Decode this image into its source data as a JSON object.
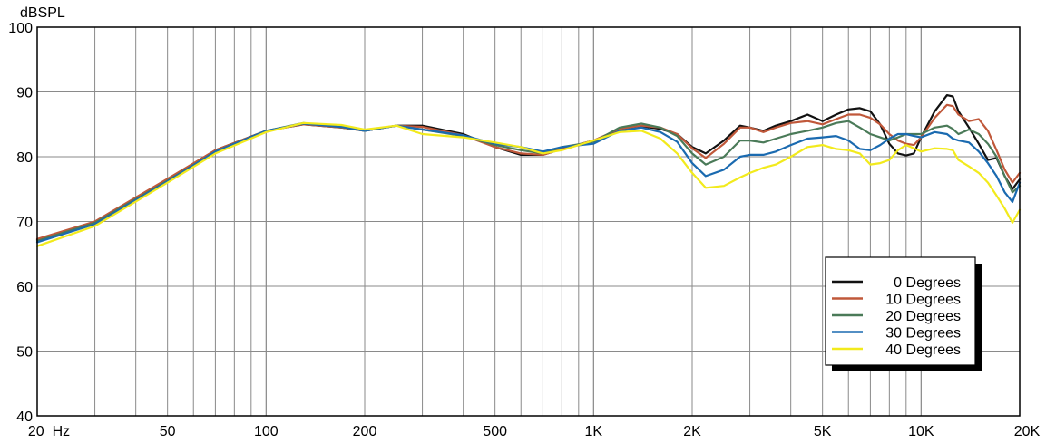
{
  "chart_data": {
    "type": "line",
    "ylabel": "dBSPL",
    "x_scale": "log",
    "xlim": [
      20,
      20000
    ],
    "ylim": [
      40,
      100
    ],
    "grid": true,
    "legend_position": "bottom-right",
    "yticks": [
      {
        "value": 40,
        "label": "40"
      },
      {
        "value": 50,
        "label": "50"
      },
      {
        "value": 60,
        "label": "60"
      },
      {
        "value": 70,
        "label": "70"
      },
      {
        "value": 80,
        "label": "80"
      },
      {
        "value": 90,
        "label": "90"
      },
      {
        "value": 100,
        "label": "100"
      }
    ],
    "xticks": [
      {
        "value": 20,
        "label": "20  Hz"
      },
      {
        "value": 50,
        "label": "50"
      },
      {
        "value": 100,
        "label": "100"
      },
      {
        "value": 200,
        "label": "200"
      },
      {
        "value": 500,
        "label": "500"
      },
      {
        "value": 1000,
        "label": "1K"
      },
      {
        "value": 2000,
        "label": "2K"
      },
      {
        "value": 5000,
        "label": "5K"
      },
      {
        "value": 10000,
        "label": "10K"
      },
      {
        "value": 20000,
        "label": "20K"
      }
    ],
    "series": [
      {
        "name": "0 Degrees",
        "color": "#111111",
        "points": [
          [
            20,
            67.2
          ],
          [
            30,
            69.8
          ],
          [
            50,
            76.5
          ],
          [
            70,
            81
          ],
          [
            100,
            84
          ],
          [
            130,
            85
          ],
          [
            170,
            84.5
          ],
          [
            200,
            84
          ],
          [
            250,
            84.8
          ],
          [
            300,
            84.8
          ],
          [
            400,
            83.5
          ],
          [
            500,
            81.5
          ],
          [
            600,
            80.3
          ],
          [
            700,
            80.3
          ],
          [
            800,
            81.2
          ],
          [
            1000,
            82.5
          ],
          [
            1200,
            84.2
          ],
          [
            1400,
            84.7
          ],
          [
            1600,
            84.3
          ],
          [
            1800,
            83.5
          ],
          [
            2000,
            81.5
          ],
          [
            2200,
            80.5
          ],
          [
            2500,
            82.5
          ],
          [
            2800,
            84.8
          ],
          [
            3000,
            84.5
          ],
          [
            3300,
            84
          ],
          [
            3600,
            84.8
          ],
          [
            4000,
            85.5
          ],
          [
            4500,
            86.5
          ],
          [
            5000,
            85.5
          ],
          [
            5500,
            86.5
          ],
          [
            6000,
            87.3
          ],
          [
            6500,
            87.5
          ],
          [
            7000,
            87
          ],
          [
            7500,
            85
          ],
          [
            8000,
            82
          ],
          [
            8500,
            80.5
          ],
          [
            9000,
            80.2
          ],
          [
            9500,
            80.5
          ],
          [
            10000,
            83
          ],
          [
            11000,
            87
          ],
          [
            12000,
            89.5
          ],
          [
            12500,
            89.3
          ],
          [
            13000,
            87
          ],
          [
            14000,
            84.5
          ],
          [
            15000,
            82
          ],
          [
            16000,
            79.5
          ],
          [
            17000,
            79.8
          ],
          [
            18000,
            77
          ],
          [
            19000,
            75
          ],
          [
            20000,
            76.5
          ]
        ]
      },
      {
        "name": "10 Degrees",
        "color": "#c0583a",
        "points": [
          [
            20,
            67.3
          ],
          [
            30,
            70
          ],
          [
            50,
            76.6
          ],
          [
            70,
            81
          ],
          [
            100,
            84
          ],
          [
            130,
            85
          ],
          [
            170,
            84.5
          ],
          [
            200,
            84
          ],
          [
            250,
            84.8
          ],
          [
            300,
            84.6
          ],
          [
            400,
            83.3
          ],
          [
            500,
            81.5
          ],
          [
            600,
            80.5
          ],
          [
            700,
            80.3
          ],
          [
            800,
            81.2
          ],
          [
            1000,
            82.5
          ],
          [
            1200,
            84.3
          ],
          [
            1400,
            84.8
          ],
          [
            1600,
            84.5
          ],
          [
            1800,
            83.5
          ],
          [
            2000,
            81.3
          ],
          [
            2200,
            79.8
          ],
          [
            2500,
            82
          ],
          [
            2800,
            84.5
          ],
          [
            3000,
            84.5
          ],
          [
            3300,
            83.8
          ],
          [
            3600,
            84.5
          ],
          [
            4000,
            85.2
          ],
          [
            4500,
            85.5
          ],
          [
            5000,
            85
          ],
          [
            5500,
            85.8
          ],
          [
            6000,
            86.5
          ],
          [
            6500,
            86.5
          ],
          [
            7000,
            86
          ],
          [
            7500,
            85
          ],
          [
            8000,
            83.5
          ],
          [
            8500,
            82.5
          ],
          [
            9000,
            82
          ],
          [
            9500,
            81.8
          ],
          [
            10000,
            83
          ],
          [
            11000,
            86
          ],
          [
            12000,
            88
          ],
          [
            12500,
            87.8
          ],
          [
            13000,
            86.5
          ],
          [
            14000,
            85.5
          ],
          [
            15000,
            85.8
          ],
          [
            16000,
            84
          ],
          [
            17000,
            81
          ],
          [
            18000,
            78
          ],
          [
            19000,
            76
          ],
          [
            20000,
            77.5
          ]
        ]
      },
      {
        "name": "20 Degrees",
        "color": "#4a7a58",
        "points": [
          [
            20,
            67
          ],
          [
            30,
            69.8
          ],
          [
            50,
            76.3
          ],
          [
            70,
            80.8
          ],
          [
            100,
            84
          ],
          [
            130,
            85.2
          ],
          [
            170,
            84.6
          ],
          [
            200,
            84
          ],
          [
            250,
            84.8
          ],
          [
            300,
            84.2
          ],
          [
            400,
            83.2
          ],
          [
            500,
            81.8
          ],
          [
            600,
            81
          ],
          [
            700,
            80.5
          ],
          [
            800,
            81.5
          ],
          [
            1000,
            82.3
          ],
          [
            1200,
            84.5
          ],
          [
            1400,
            85.1
          ],
          [
            1600,
            84.5
          ],
          [
            1800,
            83.2
          ],
          [
            2000,
            80.5
          ],
          [
            2200,
            78.8
          ],
          [
            2500,
            80
          ],
          [
            2800,
            82.5
          ],
          [
            3000,
            82.5
          ],
          [
            3300,
            82.2
          ],
          [
            3600,
            82.8
          ],
          [
            4000,
            83.5
          ],
          [
            4500,
            84
          ],
          [
            5000,
            84.5
          ],
          [
            5500,
            85.2
          ],
          [
            6000,
            85.5
          ],
          [
            6500,
            84.5
          ],
          [
            7000,
            83.5
          ],
          [
            7500,
            83
          ],
          [
            8000,
            82.5
          ],
          [
            8500,
            83
          ],
          [
            9000,
            83.5
          ],
          [
            9500,
            83.5
          ],
          [
            10000,
            83.5
          ],
          [
            11000,
            84.5
          ],
          [
            12000,
            84.8
          ],
          [
            12500,
            84.3
          ],
          [
            13000,
            83.5
          ],
          [
            14000,
            84.2
          ],
          [
            15000,
            83.5
          ],
          [
            16000,
            82
          ],
          [
            17000,
            80
          ],
          [
            18000,
            77
          ],
          [
            19000,
            74.5
          ],
          [
            20000,
            75.5
          ]
        ]
      },
      {
        "name": "30 Degrees",
        "color": "#1a6ab0",
        "points": [
          [
            20,
            66.8
          ],
          [
            30,
            69.6
          ],
          [
            50,
            76.2
          ],
          [
            70,
            80.8
          ],
          [
            100,
            84
          ],
          [
            130,
            85.1
          ],
          [
            170,
            84.6
          ],
          [
            200,
            84
          ],
          [
            250,
            84.8
          ],
          [
            300,
            84.2
          ],
          [
            400,
            83.3
          ],
          [
            500,
            82
          ],
          [
            600,
            81.5
          ],
          [
            700,
            80.8
          ],
          [
            800,
            81.5
          ],
          [
            1000,
            82
          ],
          [
            1200,
            84
          ],
          [
            1400,
            84.5
          ],
          [
            1600,
            83.8
          ],
          [
            1800,
            82.3
          ],
          [
            2000,
            79
          ],
          [
            2200,
            77
          ],
          [
            2500,
            78
          ],
          [
            2800,
            80
          ],
          [
            3000,
            80.3
          ],
          [
            3300,
            80.3
          ],
          [
            3600,
            80.8
          ],
          [
            4000,
            81.8
          ],
          [
            4500,
            82.8
          ],
          [
            5000,
            83
          ],
          [
            5500,
            83.2
          ],
          [
            6000,
            82.5
          ],
          [
            6500,
            81.2
          ],
          [
            7000,
            81
          ],
          [
            7500,
            81.8
          ],
          [
            8000,
            82.8
          ],
          [
            8500,
            83.5
          ],
          [
            9000,
            83.5
          ],
          [
            9500,
            83.2
          ],
          [
            10000,
            83
          ],
          [
            11000,
            83.8
          ],
          [
            12000,
            83.5
          ],
          [
            12500,
            82.8
          ],
          [
            13000,
            82.5
          ],
          [
            14000,
            82.2
          ],
          [
            15000,
            80.8
          ],
          [
            16000,
            79
          ],
          [
            17000,
            77
          ],
          [
            18000,
            74.5
          ],
          [
            19000,
            73
          ],
          [
            20000,
            76
          ]
        ]
      },
      {
        "name": "40 Degrees",
        "color": "#f2ea1c",
        "points": [
          [
            20,
            66.2
          ],
          [
            30,
            69.3
          ],
          [
            50,
            76
          ],
          [
            70,
            80.5
          ],
          [
            100,
            83.8
          ],
          [
            130,
            85.2
          ],
          [
            170,
            84.9
          ],
          [
            200,
            84.2
          ],
          [
            250,
            84.8
          ],
          [
            300,
            83.5
          ],
          [
            400,
            83
          ],
          [
            500,
            82.2
          ],
          [
            600,
            81.5
          ],
          [
            700,
            80.5
          ],
          [
            800,
            81
          ],
          [
            1000,
            82.5
          ],
          [
            1200,
            83.8
          ],
          [
            1400,
            84
          ],
          [
            1600,
            82.8
          ],
          [
            1800,
            80.5
          ],
          [
            2000,
            77.5
          ],
          [
            2200,
            75.2
          ],
          [
            2500,
            75.5
          ],
          [
            2800,
            76.8
          ],
          [
            3000,
            77.5
          ],
          [
            3300,
            78.3
          ],
          [
            3600,
            78.8
          ],
          [
            4000,
            80
          ],
          [
            4500,
            81.5
          ],
          [
            5000,
            81.8
          ],
          [
            5500,
            81.2
          ],
          [
            6000,
            81
          ],
          [
            6500,
            80.5
          ],
          [
            7000,
            78.8
          ],
          [
            7500,
            79
          ],
          [
            8000,
            79.5
          ],
          [
            8500,
            81
          ],
          [
            9000,
            81.8
          ],
          [
            9500,
            81.3
          ],
          [
            10000,
            80.8
          ],
          [
            11000,
            81.3
          ],
          [
            12000,
            81.2
          ],
          [
            12500,
            81
          ],
          [
            13000,
            79.5
          ],
          [
            14000,
            78.5
          ],
          [
            15000,
            77.5
          ],
          [
            16000,
            76
          ],
          [
            17000,
            74
          ],
          [
            18000,
            72
          ],
          [
            19000,
            69.8
          ],
          [
            20000,
            71.8
          ]
        ]
      }
    ]
  }
}
